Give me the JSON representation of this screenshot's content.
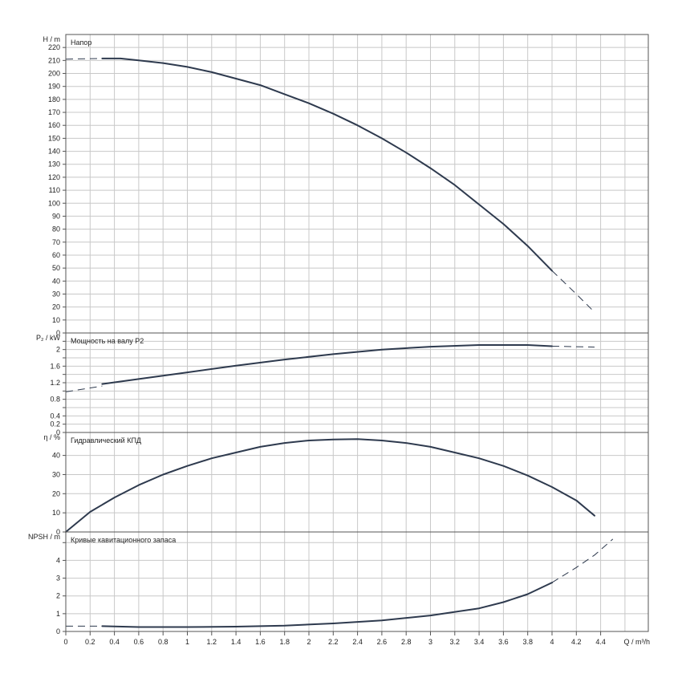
{
  "chart_data": {
    "type": "line",
    "x_label": "Q / m³/h",
    "x_range": [
      0,
      4.8
    ],
    "x_ticks": [
      0,
      0.2,
      0.4,
      0.6,
      0.8,
      1,
      1.2,
      1.4,
      1.6,
      1.8,
      2,
      2.2,
      2.4,
      2.6,
      2.8,
      3,
      3.2,
      3.4,
      3.6,
      3.8,
      4,
      4.2,
      4.4
    ],
    "x_tick_labels": [
      "0",
      "0.2",
      "0.4",
      "0.6",
      "0.8",
      "1",
      "1.2",
      "1.4",
      "1.6",
      "1.8",
      "2",
      "2.2",
      "2.4",
      "2.6",
      "2.8",
      "3",
      "3.2",
      "3.4",
      "3.6",
      "3.8",
      "4",
      "4.2",
      "4.4"
    ],
    "grid": true,
    "panels": [
      {
        "id": "head",
        "title": "Напор",
        "ylabel": "H / m",
        "ylim": [
          0,
          230
        ],
        "yticks": [
          0,
          10,
          20,
          30,
          40,
          50,
          60,
          70,
          80,
          90,
          100,
          110,
          120,
          130,
          140,
          150,
          160,
          170,
          180,
          190,
          200,
          210,
          220
        ],
        "ytick_labels": [
          "0",
          "10",
          "20",
          "30",
          "40",
          "50",
          "60",
          "70",
          "80",
          "90",
          "100",
          "110",
          "120",
          "130",
          "140",
          "150",
          "160",
          "170",
          "180",
          "190",
          "200",
          "210",
          "220"
        ],
        "series": [
          {
            "style": "dashed",
            "x": [
              0,
              0.3
            ],
            "y": [
              211,
              211.5
            ]
          },
          {
            "style": "solid",
            "x": [
              0.3,
              0.45,
              0.6,
              0.8,
              1.0,
              1.2,
              1.4,
              1.6,
              1.8,
              2.0,
              2.2,
              2.4,
              2.6,
              2.8,
              3.0,
              3.2,
              3.4,
              3.6,
              3.8,
              4.0
            ],
            "y": [
              211.5,
              211.5,
              210,
              208,
              205,
              201,
              196,
              191,
              184,
              177,
              169,
              160,
              150,
              139,
              127,
              114,
              99,
              84,
              67,
              48
            ]
          },
          {
            "style": "dashed",
            "x": [
              4.0,
              4.2,
              4.35
            ],
            "y": [
              48,
              30,
              16
            ]
          }
        ]
      },
      {
        "id": "power",
        "title": "Мощность на валу P2",
        "ylabel": "P₂ / kW",
        "ylim": [
          0,
          2.4
        ],
        "yticks": [
          0,
          0.2,
          0.4,
          0.6,
          0.8,
          1.0,
          1.2,
          1.4,
          1.6,
          1.8,
          2.0,
          2.2
        ],
        "ytick_labels": [
          "0",
          "0.2",
          "0.4",
          "",
          "0.8",
          "",
          "1.2",
          "",
          "1.6",
          "",
          "2",
          ""
        ],
        "series": [
          {
            "style": "dashed",
            "x": [
              0,
              0.3
            ],
            "y": [
              0.98,
              1.12
            ]
          },
          {
            "style": "solid",
            "x": [
              0.3,
              0.6,
              1.0,
              1.4,
              1.8,
              2.2,
              2.6,
              3.0,
              3.4,
              3.8,
              4.0
            ],
            "y": [
              1.17,
              1.29,
              1.45,
              1.61,
              1.76,
              1.89,
              2.0,
              2.07,
              2.11,
              2.11,
              2.08
            ]
          },
          {
            "style": "dashed",
            "x": [
              4.0,
              4.35
            ],
            "y": [
              2.08,
              2.06
            ]
          }
        ]
      },
      {
        "id": "efficiency",
        "title": "Гидравлический КПД",
        "ylabel": "η / %",
        "ylim": [
          0,
          52
        ],
        "yticks": [
          0,
          10,
          20,
          30,
          40
        ],
        "ytick_labels": [
          "0",
          "10",
          "20",
          "30",
          "40"
        ],
        "series": [
          {
            "style": "solid",
            "x": [
              0,
              0.2,
              0.4,
              0.6,
              0.8,
              1.0,
              1.2,
              1.4,
              1.6,
              1.8,
              2.0,
              2.2,
              2.4,
              2.6,
              2.8,
              3.0,
              3.2,
              3.4,
              3.6,
              3.8,
              4.0,
              4.2,
              4.35
            ],
            "y": [
              0,
              10.5,
              18,
              24.5,
              30,
              34.5,
              38.5,
              41.5,
              44.5,
              46.5,
              47.8,
              48.3,
              48.5,
              47.8,
              46.5,
              44.5,
              41.5,
              38.5,
              34.5,
              29.5,
              23.5,
              16.5,
              8.5
            ]
          }
        ]
      },
      {
        "id": "npsh",
        "title": "Кривые кавитационного запаса",
        "ylabel": "NPSH / m",
        "ylim": [
          0,
          5.6
        ],
        "yticks": [
          0,
          1,
          2,
          3,
          4,
          5
        ],
        "ytick_labels": [
          "0",
          "1",
          "2",
          "3",
          "4",
          ""
        ],
        "series": [
          {
            "style": "dashed",
            "x": [
              0,
              0.3
            ],
            "y": [
              0.3,
              0.3
            ]
          },
          {
            "style": "solid",
            "x": [
              0.3,
              0.6,
              1.0,
              1.4,
              1.8,
              2.2,
              2.6,
              3.0,
              3.4,
              3.6,
              3.8,
              4.0
            ],
            "y": [
              0.3,
              0.25,
              0.25,
              0.27,
              0.33,
              0.45,
              0.62,
              0.9,
              1.3,
              1.65,
              2.1,
              2.75
            ]
          },
          {
            "style": "dashed",
            "x": [
              4.0,
              4.2,
              4.35,
              4.5
            ],
            "y": [
              2.75,
              3.6,
              4.3,
              5.2
            ]
          }
        ]
      }
    ]
  }
}
